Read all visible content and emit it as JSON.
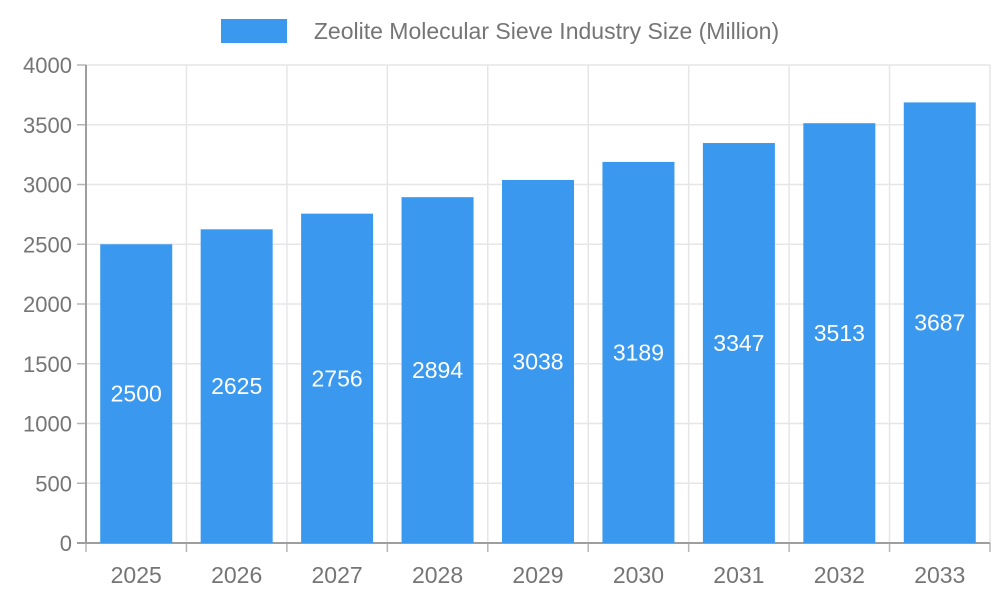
{
  "legend": {
    "label": "Zeolite Molecular Sieve Industry Size (Million)"
  },
  "colors": {
    "bar": "#3A99EE",
    "axis_text": "#757575",
    "grid_line": "#E6E6E6",
    "axis_line": "#9E9E9E",
    "tick_line": "#B5B5B5",
    "value_label": "#FFFFFF",
    "background": "#FFFFFF"
  },
  "chart_data": {
    "type": "bar",
    "title": "Zeolite Molecular Sieve Industry Size (Million)",
    "categories": [
      "2025",
      "2026",
      "2027",
      "2028",
      "2029",
      "2030",
      "2031",
      "2032",
      "2033"
    ],
    "values": [
      2500,
      2625,
      2756,
      2894,
      3038,
      3189,
      3347,
      3513,
      3687
    ],
    "xlabel": "",
    "ylabel": "",
    "ylim": [
      0,
      4000
    ],
    "ytick_step": 500,
    "ytick_labels": [
      "0",
      "500",
      "1000",
      "1500",
      "2000",
      "2500",
      "3000",
      "3500",
      "4000"
    ],
    "grid": true,
    "legend_position": "top",
    "value_label_position": "inside-center"
  }
}
